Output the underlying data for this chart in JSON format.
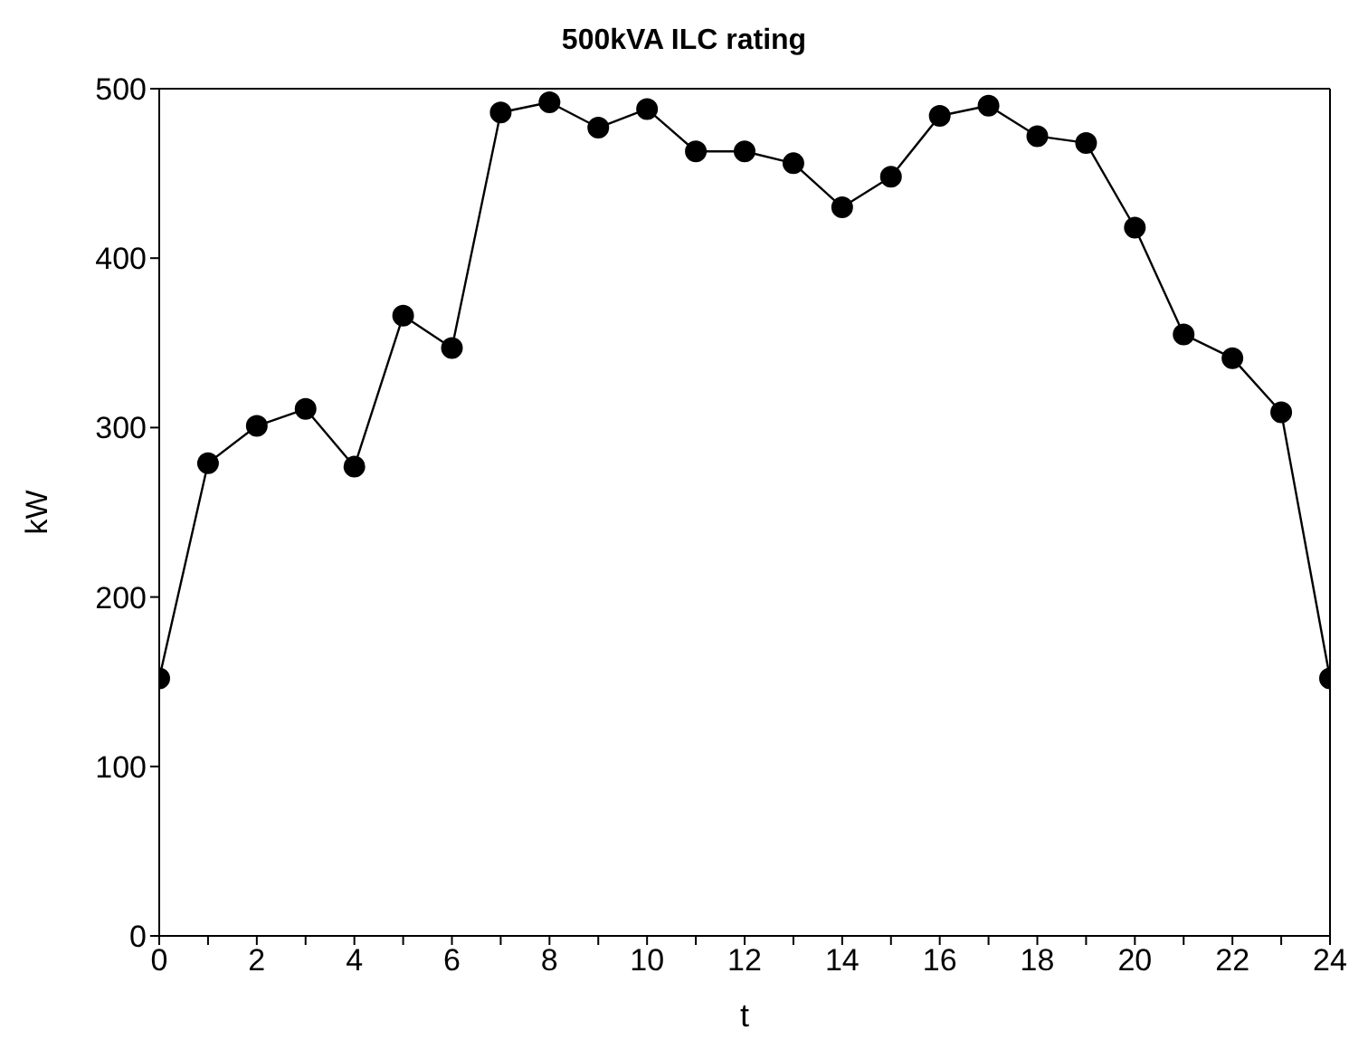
{
  "chart_data": {
    "type": "line",
    "title": "500kVA ILC rating",
    "xlabel": "t",
    "ylabel": "kW",
    "x": [
      0,
      1,
      2,
      3,
      4,
      5,
      6,
      7,
      8,
      9,
      10,
      11,
      12,
      13,
      14,
      15,
      16,
      17,
      18,
      19,
      20,
      21,
      22,
      23,
      24
    ],
    "series": [
      {
        "color": "#000000",
        "values": [
          152,
          279,
          301,
          311,
          277,
          366,
          347,
          486,
          492,
          477,
          488,
          463,
          463,
          456,
          430,
          448,
          484,
          490,
          472,
          468,
          418,
          355,
          341,
          309,
          152
        ]
      }
    ],
    "xlim": [
      0,
      24
    ],
    "xticks": [
      0,
      {
        "value": 1,
        "label": null
      },
      2,
      {
        "value": 3,
        "label": null
      },
      4,
      {
        "value": 5,
        "label": null
      },
      6,
      {
        "value": 7,
        "label": null
      },
      8,
      {
        "value": 9,
        "label": null
      },
      10,
      {
        "value": 11,
        "label": null
      },
      12,
      {
        "value": 13,
        "label": null
      },
      14,
      {
        "value": 15,
        "label": null
      },
      16,
      {
        "value": 17,
        "label": null
      },
      18,
      {
        "value": 19,
        "label": null
      },
      20,
      {
        "value": 21,
        "label": null
      },
      22,
      {
        "value": 23,
        "label": null
      },
      24
    ],
    "ylim": [
      0,
      500
    ],
    "yticks": [
      0,
      100,
      200,
      300,
      400,
      500
    ],
    "grid": false,
    "legend": false,
    "marker": "circle",
    "line_style": "solid"
  }
}
